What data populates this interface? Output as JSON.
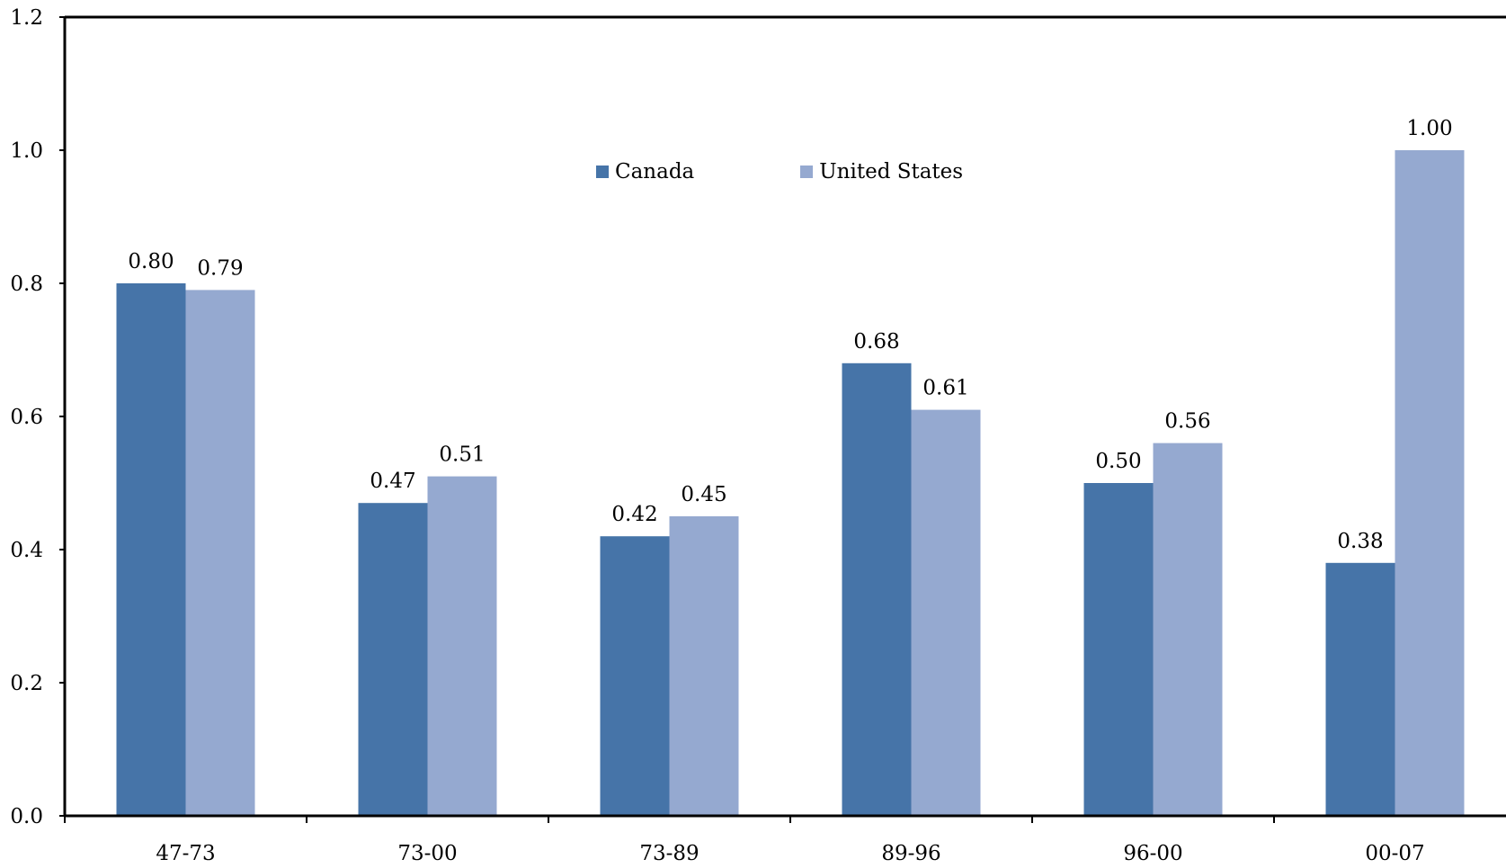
{
  "chart_data": {
    "type": "bar",
    "title": "",
    "xlabel": "",
    "ylabel": "",
    "categories": [
      "47-73",
      "73-00",
      "73-89",
      "89-96",
      "96-00",
      "00-07"
    ],
    "series": [
      {
        "name": "Canada",
        "color": "#4674A8",
        "values": [
          0.8,
          0.47,
          0.42,
          0.68,
          0.5,
          0.38
        ],
        "labels": [
          "0.80",
          "0.47",
          "0.42",
          "0.68",
          "0.50",
          "0.38"
        ]
      },
      {
        "name": "United States",
        "color": "#95A9D0",
        "values": [
          0.79,
          0.51,
          0.45,
          0.61,
          0.56,
          1.0
        ],
        "labels": [
          "0.79",
          "0.51",
          "0.45",
          "0.61",
          "0.56",
          "1.00"
        ]
      }
    ],
    "ylim": [
      0,
      1.2
    ],
    "yticks": [
      "0.0",
      "0.2",
      "0.4",
      "0.6",
      "0.8",
      "1.0",
      "1.2"
    ],
    "grid": false,
    "legend_position": "top-center"
  }
}
